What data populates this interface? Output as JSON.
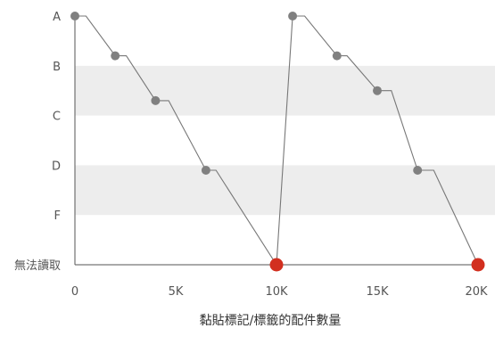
{
  "chart_data": {
    "type": "line",
    "title": "",
    "xlabel": "黏貼標記/標籤的配件數量",
    "ylabel": "",
    "x_ticks": [
      {
        "value": 0,
        "label": "0"
      },
      {
        "value": 5000,
        "label": "5K"
      },
      {
        "value": 10000,
        "label": "10K"
      },
      {
        "value": 15000,
        "label": "15K"
      },
      {
        "value": 20000,
        "label": "20K"
      }
    ],
    "y_levels": [
      "A",
      "B",
      "C",
      "D",
      "F",
      "無法讀取"
    ],
    "xlim": [
      0,
      20000
    ],
    "grade_bands_shaded": [
      "B",
      "D"
    ],
    "series": [
      {
        "x": [
          0,
          550,
          2000,
          2550,
          4000,
          4650,
          6500,
          7000,
          10000,
          10800,
          11400,
          13000,
          13500,
          15000,
          15700,
          17000,
          17800,
          20000
        ],
        "y": [
          0,
          0,
          0.8,
          0.8,
          1.7,
          1.7,
          3.1,
          3.1,
          5,
          0,
          0,
          0.8,
          0.8,
          1.5,
          1.5,
          3.1,
          3.1,
          5
        ]
      }
    ],
    "markers": {
      "gray": [
        {
          "x": 0,
          "y": 0
        },
        {
          "x": 2000,
          "y": 0.8
        },
        {
          "x": 4000,
          "y": 1.7
        },
        {
          "x": 6500,
          "y": 3.1
        },
        {
          "x": 10800,
          "y": 0
        },
        {
          "x": 13000,
          "y": 0.8
        },
        {
          "x": 15000,
          "y": 1.5
        },
        {
          "x": 17000,
          "y": 3.1
        }
      ],
      "red": [
        {
          "x": 10000,
          "y": 5
        },
        {
          "x": 20000,
          "y": 5
        }
      ]
    },
    "colors": {
      "line": "#777777",
      "marker_gray": "#808080",
      "marker_red": "#d22f1f",
      "band": "#ededed",
      "axis": "#555555"
    }
  }
}
